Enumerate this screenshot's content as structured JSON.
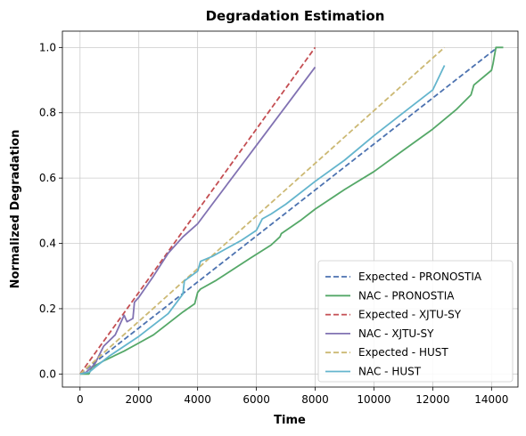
{
  "chart_data": {
    "type": "line",
    "title": "Degradation Estimation",
    "xlabel": "Time",
    "ylabel": "Normalized Degradation",
    "xlim": [
      -600,
      14900
    ],
    "ylim": [
      -0.04,
      1.05
    ],
    "xticks": [
      0,
      2000,
      4000,
      6000,
      8000,
      10000,
      12000,
      14000
    ],
    "yticks": [
      0.0,
      0.2,
      0.4,
      0.6,
      0.8,
      1.0
    ],
    "xtick_labels": [
      "0",
      "2000",
      "4000",
      "6000",
      "8000",
      "10000",
      "12000",
      "14000"
    ],
    "ytick_labels": [
      "0.0",
      "0.2",
      "0.4",
      "0.6",
      "0.8",
      "1.0"
    ],
    "grid": true,
    "legend_position": "lower-right",
    "series": [
      {
        "name": "Expected - PRONOSTIA",
        "color": "#4c72b0",
        "dash": true,
        "points": [
          [
            0,
            0.0
          ],
          [
            14200,
            1.0
          ]
        ]
      },
      {
        "name": "NAC - PRONOSTIA",
        "color": "#55a868",
        "dash": false,
        "points": [
          [
            0,
            0.0
          ],
          [
            300,
            0.0
          ],
          [
            400,
            0.02
          ],
          [
            800,
            0.04
          ],
          [
            1500,
            0.07
          ],
          [
            2000,
            0.095
          ],
          [
            2500,
            0.12
          ],
          [
            3000,
            0.155
          ],
          [
            3500,
            0.19
          ],
          [
            3900,
            0.215
          ],
          [
            4000,
            0.25
          ],
          [
            4100,
            0.26
          ],
          [
            4600,
            0.285
          ],
          [
            5200,
            0.32
          ],
          [
            5800,
            0.355
          ],
          [
            6500,
            0.395
          ],
          [
            6800,
            0.42
          ],
          [
            6850,
            0.43
          ],
          [
            7500,
            0.47
          ],
          [
            8000,
            0.505
          ],
          [
            9000,
            0.565
          ],
          [
            10000,
            0.62
          ],
          [
            11000,
            0.685
          ],
          [
            12000,
            0.75
          ],
          [
            12800,
            0.81
          ],
          [
            13300,
            0.855
          ],
          [
            13400,
            0.885
          ],
          [
            14000,
            0.93
          ],
          [
            14050,
            0.95
          ],
          [
            14100,
            0.975
          ],
          [
            14150,
            1.0
          ],
          [
            14400,
            1.0
          ]
        ]
      },
      {
        "name": "Expected - XJTU-SY",
        "color": "#c44e52",
        "dash": true,
        "points": [
          [
            0,
            0.0
          ],
          [
            8000,
            1.0
          ]
        ]
      },
      {
        "name": "NAC - XJTU-SY",
        "color": "#8172b2",
        "dash": false,
        "points": [
          [
            0,
            0.0
          ],
          [
            200,
            0.005
          ],
          [
            500,
            0.03
          ],
          [
            800,
            0.085
          ],
          [
            1200,
            0.12
          ],
          [
            1500,
            0.18
          ],
          [
            1600,
            0.16
          ],
          [
            1800,
            0.17
          ],
          [
            1850,
            0.22
          ],
          [
            2000,
            0.235
          ],
          [
            2500,
            0.3
          ],
          [
            3000,
            0.37
          ],
          [
            3500,
            0.42
          ],
          [
            4000,
            0.46
          ],
          [
            4500,
            0.52
          ],
          [
            5000,
            0.58
          ],
          [
            5500,
            0.64
          ],
          [
            6000,
            0.7
          ],
          [
            6500,
            0.76
          ],
          [
            7000,
            0.82
          ],
          [
            7500,
            0.88
          ],
          [
            8000,
            0.94
          ]
        ]
      },
      {
        "name": "Expected - HUST",
        "color": "#ccb974",
        "dash": true,
        "points": [
          [
            0,
            0.0
          ],
          [
            12400,
            1.0
          ]
        ]
      },
      {
        "name": "NAC - HUST",
        "color": "#64b5cd",
        "dash": false,
        "points": [
          [
            0,
            0.0
          ],
          [
            300,
            0.005
          ],
          [
            500,
            0.02
          ],
          [
            1000,
            0.055
          ],
          [
            2000,
            0.115
          ],
          [
            3000,
            0.185
          ],
          [
            3500,
            0.245
          ],
          [
            3550,
            0.285
          ],
          [
            4000,
            0.315
          ],
          [
            4100,
            0.345
          ],
          [
            4500,
            0.36
          ],
          [
            5000,
            0.385
          ],
          [
            5500,
            0.41
          ],
          [
            6000,
            0.44
          ],
          [
            6200,
            0.475
          ],
          [
            6500,
            0.49
          ],
          [
            7000,
            0.52
          ],
          [
            8000,
            0.59
          ],
          [
            9000,
            0.655
          ],
          [
            10000,
            0.73
          ],
          [
            11000,
            0.8
          ],
          [
            12000,
            0.87
          ],
          [
            12400,
            0.945
          ]
        ]
      }
    ]
  }
}
